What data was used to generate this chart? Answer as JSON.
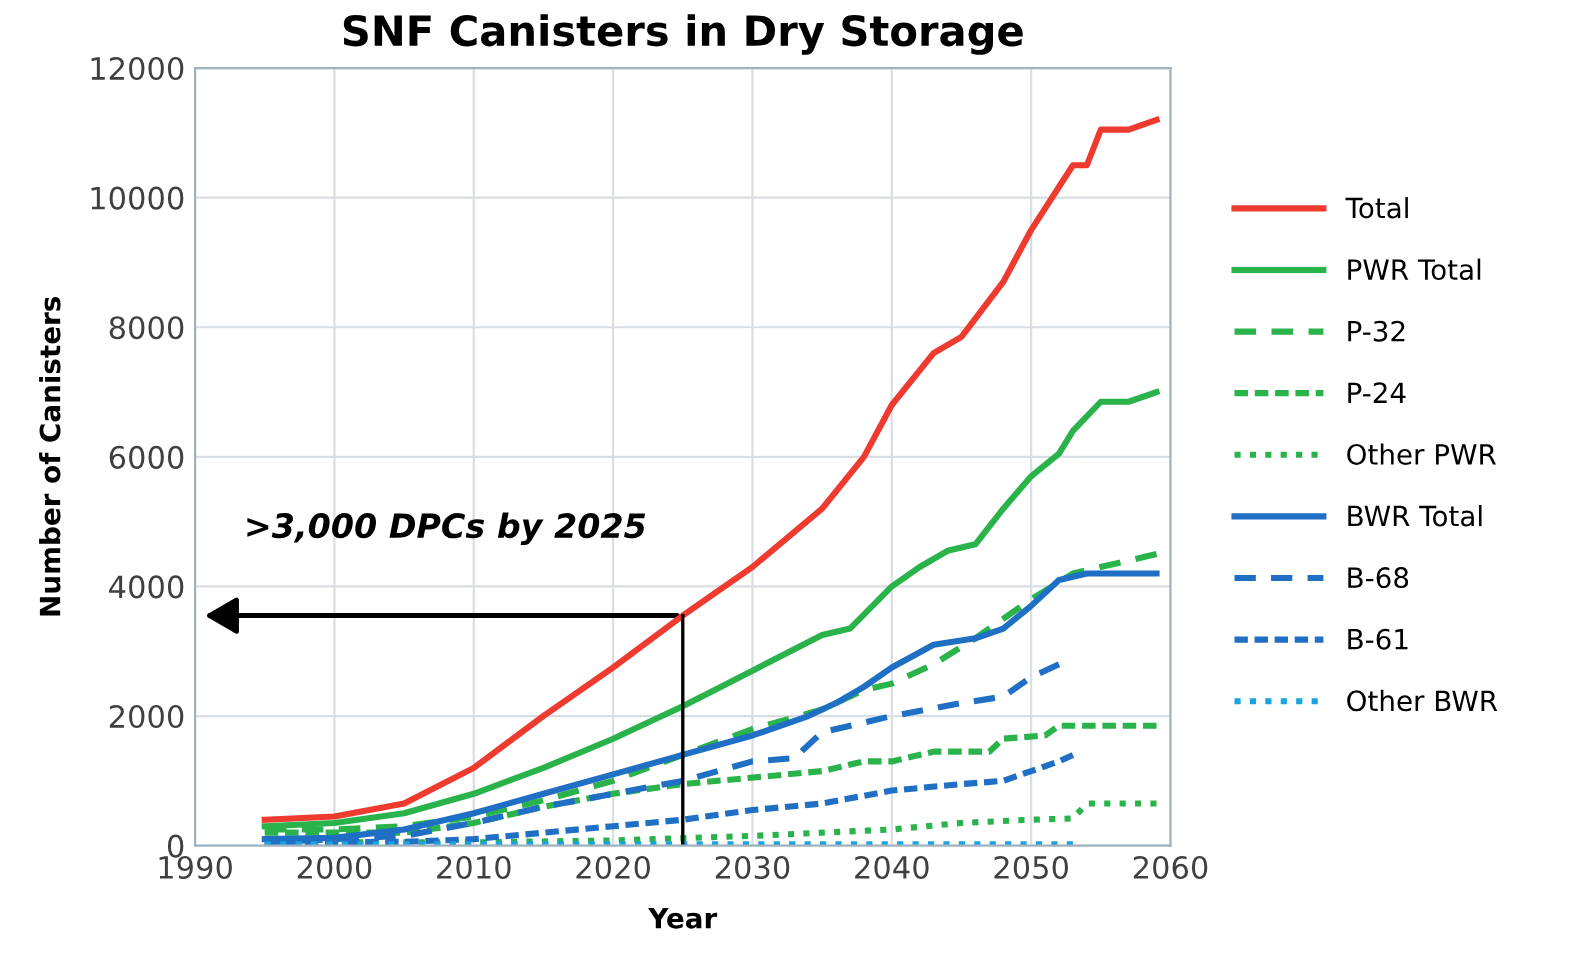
{
  "chart_data": {
    "type": "line",
    "title": "SNF Canisters in Dry Storage",
    "xlabel": "Year",
    "ylabel": "Number of Canisters",
    "xlim": [
      1990,
      2060
    ],
    "xticks": [
      1990,
      2000,
      2010,
      2020,
      2030,
      2040,
      2050,
      2060
    ],
    "ylim": [
      0,
      12000
    ],
    "yticks": [
      0,
      2000,
      4000,
      6000,
      8000,
      10000,
      12000
    ],
    "grid": true,
    "legend": "right",
    "marker": "none",
    "annotations": [
      {
        "text": ">3,000 DPCs by 2025",
        "x": 2025,
        "y": 3550
      }
    ],
    "series": [
      {
        "name": "Total",
        "color": "#ee3a2f",
        "line_style": "solid",
        "x": [
          1995,
          2000,
          2005,
          2010,
          2015,
          2020,
          2025,
          2030,
          2035,
          2038,
          2040,
          2043,
          2045,
          2048,
          2050,
          2053,
          2054,
          2055,
          2057,
          2059
        ],
        "values": [
          400,
          450,
          650,
          1200,
          2000,
          2750,
          3550,
          4300,
          5200,
          6000,
          6800,
          7600,
          7850,
          8700,
          9500,
          10500,
          10500,
          11050,
          11050,
          11200
        ]
      },
      {
        "name": "PWR Total",
        "color": "#2ab34a",
        "line_style": "solid",
        "x": [
          1995,
          2000,
          2005,
          2010,
          2015,
          2020,
          2025,
          2030,
          2035,
          2037,
          2040,
          2042,
          2044,
          2046,
          2048,
          2050,
          2052,
          2053,
          2055,
          2057,
          2059
        ],
        "values": [
          300,
          350,
          500,
          800,
          1200,
          1650,
          2150,
          2700,
          3250,
          3350,
          4000,
          4300,
          4550,
          4650,
          5200,
          5700,
          6050,
          6400,
          6850,
          6850,
          7000
        ]
      },
      {
        "name": "P-32",
        "color": "#2ab34a",
        "line_style": "dashed",
        "x": [
          1995,
          2000,
          2005,
          2010,
          2015,
          2020,
          2025,
          2030,
          2035,
          2038,
          2040,
          2043,
          2046,
          2050,
          2053,
          2059
        ],
        "values": [
          250,
          250,
          300,
          450,
          700,
          1000,
          1400,
          1800,
          2100,
          2400,
          2500,
          2800,
          3200,
          3800,
          4200,
          4500
        ]
      },
      {
        "name": "P-24",
        "color": "#2ab34a",
        "line_style": "densedash",
        "x": [
          1995,
          2005,
          2010,
          2015,
          2020,
          2025,
          2030,
          2035,
          2038,
          2040,
          2043,
          2047,
          2048,
          2051,
          2052,
          2059
        ],
        "values": [
          200,
          200,
          350,
          600,
          800,
          950,
          1050,
          1150,
          1300,
          1300,
          1450,
          1450,
          1650,
          1700,
          1850,
          1850
        ]
      },
      {
        "name": "Other PWR",
        "color": "#2ab34a",
        "line_style": "dotted",
        "x": [
          1995,
          2010,
          2020,
          2030,
          2040,
          2045,
          2050,
          2053,
          2054,
          2059
        ],
        "values": [
          50,
          50,
          80,
          150,
          250,
          350,
          400,
          420,
          650,
          650
        ]
      },
      {
        "name": "BWR Total",
        "color": "#1f6fc5",
        "line_style": "solid",
        "x": [
          1995,
          2000,
          2005,
          2010,
          2015,
          2020,
          2025,
          2030,
          2034,
          2036,
          2038,
          2040,
          2043,
          2046,
          2048,
          2050,
          2052,
          2054,
          2059
        ],
        "values": [
          100,
          120,
          250,
          500,
          800,
          1100,
          1400,
          1700,
          2000,
          2200,
          2450,
          2750,
          3100,
          3200,
          3350,
          3700,
          4100,
          4200,
          4200
        ]
      },
      {
        "name": "B-68",
        "color": "#1f6fc5",
        "line_style": "dashed",
        "x": [
          1995,
          2005,
          2010,
          2015,
          2020,
          2025,
          2030,
          2033,
          2035,
          2040,
          2045,
          2048,
          2050,
          2052
        ],
        "values": [
          50,
          150,
          350,
          600,
          800,
          1000,
          1300,
          1350,
          1750,
          2000,
          2200,
          2300,
          2600,
          2800
        ]
      },
      {
        "name": "B-61",
        "color": "#1f6fc5",
        "line_style": "densedash",
        "x": [
          1995,
          2005,
          2010,
          2015,
          2020,
          2025,
          2030,
          2035,
          2040,
          2045,
          2048,
          2050,
          2052,
          2053
        ],
        "values": [
          50,
          60,
          100,
          200,
          300,
          400,
          550,
          650,
          850,
          950,
          1000,
          1150,
          1300,
          1400
        ]
      },
      {
        "name": "Other BWR",
        "color": "#1aa3e0",
        "line_style": "dotted",
        "x": [
          1995,
          2053
        ],
        "values": [
          20,
          20
        ]
      }
    ]
  }
}
